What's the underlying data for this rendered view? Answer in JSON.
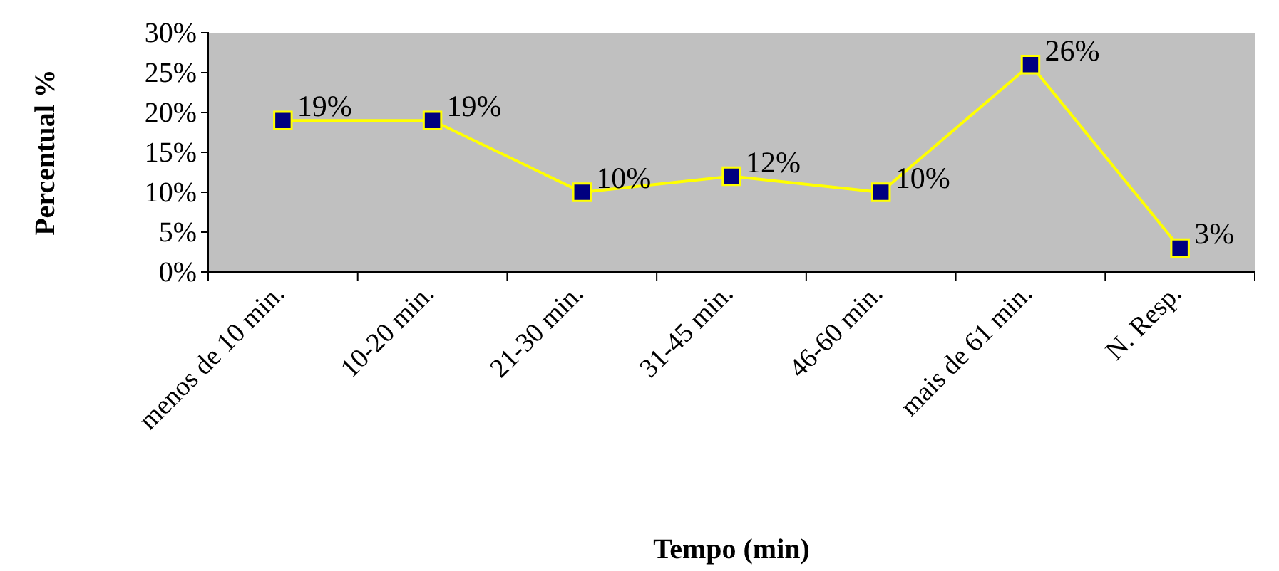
{
  "chart_data": {
    "type": "line",
    "xlabel": "Tempo (min)",
    "ylabel": "Percentual %",
    "categories": [
      "menos de 10 min.",
      "10-20 min.",
      "21-30 min.",
      "31-45 min.",
      "46-60 min.",
      "mais de 61 min.",
      "N. Resp."
    ],
    "series": [
      {
        "color": "#ffff00",
        "values": [
          19,
          19,
          10,
          12,
          10,
          26,
          3
        ],
        "value_labels": [
          "19%",
          "19%",
          "10%",
          "12%",
          "10%",
          "26%",
          "3%"
        ]
      }
    ],
    "ylim": [
      0,
      30
    ],
    "yticks": [
      {
        "value": 0,
        "label": "0%"
      },
      {
        "value": 5,
        "label": "5%"
      },
      {
        "value": 10,
        "label": "10%"
      },
      {
        "value": 15,
        "label": "15%"
      },
      {
        "value": 20,
        "label": "20%"
      },
      {
        "value": 25,
        "label": "25%"
      },
      {
        "value": 30,
        "label": "30%"
      }
    ],
    "marker": "square"
  }
}
